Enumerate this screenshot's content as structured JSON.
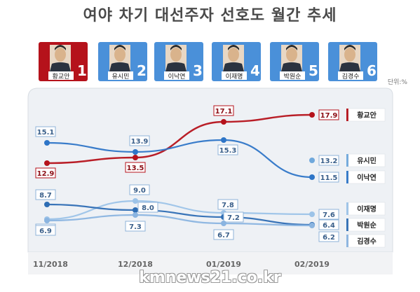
{
  "title": "여야 차기 대선주자 선호도 월간 추세",
  "unit": "단위:%",
  "watermark": "kmnews21.co.kr",
  "candidates": [
    {
      "name": "황교안",
      "rank": "1",
      "color": "#b5121b"
    },
    {
      "name": "유시민",
      "rank": "2",
      "color": "#4a90d9"
    },
    {
      "name": "이낙연",
      "rank": "3",
      "color": "#4a90d9"
    },
    {
      "name": "이재명",
      "rank": "4",
      "color": "#4a90d9"
    },
    {
      "name": "박원순",
      "rank": "5",
      "color": "#4a90d9"
    },
    {
      "name": "김경수",
      "rank": "6",
      "color": "#4a90d9"
    }
  ],
  "chart_data": {
    "type": "line",
    "categories": [
      "11/2018",
      "12/2018",
      "01/2019",
      "02/2019"
    ],
    "series": [
      {
        "name": "황교안",
        "values": [
          12.9,
          13.5,
          17.1,
          17.9
        ],
        "color": "#b5121b"
      },
      {
        "name": "유시민",
        "values": [
          null,
          null,
          null,
          13.2
        ],
        "color": "#6fa8dc"
      },
      {
        "name": "이낙연",
        "values": [
          15.1,
          13.9,
          15.3,
          11.5
        ],
        "color": "#2e75c7"
      },
      {
        "name": "이재명",
        "values": [
          7.0,
          9.0,
          7.8,
          7.6
        ],
        "color": "#9cc3e8"
      },
      {
        "name": "박원순",
        "values": [
          8.7,
          8.0,
          7.2,
          6.4
        ],
        "color": "#2e6db4"
      },
      {
        "name": "김경수",
        "values": [
          6.9,
          7.3,
          6.7,
          6.2
        ],
        "color": "#8ab4e0"
      }
    ],
    "grid": false,
    "legend": "right"
  }
}
